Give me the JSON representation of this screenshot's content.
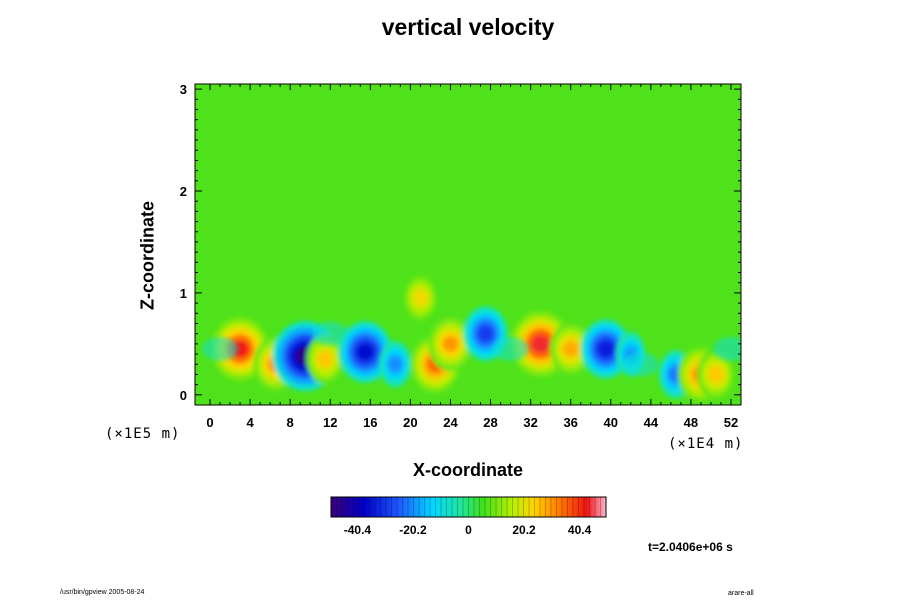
{
  "chart_data": {
    "type": "heatmap",
    "title": "vertical velocity",
    "xlabel": "X-coordinate",
    "ylabel": "Z-coordinate",
    "x_unit": "(×1E4 m)",
    "z_unit": "(×1E5 m)",
    "xlim": [
      -1.5,
      53
    ],
    "ylim": [
      -0.1,
      3.05
    ],
    "x_ticks": [
      0,
      4,
      8,
      12,
      16,
      20,
      24,
      28,
      32,
      36,
      40,
      44,
      48,
      52
    ],
    "y_ticks": [
      0,
      1,
      2,
      3
    ],
    "colorbar": {
      "range": [
        -50,
        50
      ],
      "ticks": [
        -40.4,
        -20.2,
        0,
        20.2,
        40.4
      ]
    },
    "annotation": "t=2.0406e+06 s",
    "features": [
      {
        "x": 3,
        "z": 0.45,
        "value": 42
      },
      {
        "x": 6.5,
        "z": 0.3,
        "value": 30
      },
      {
        "x": 9.5,
        "z": 0.38,
        "value": -48
      },
      {
        "x": 11.5,
        "z": 0.35,
        "value": 25
      },
      {
        "x": 15.5,
        "z": 0.42,
        "value": -38
      },
      {
        "x": 18.5,
        "z": 0.3,
        "value": -20
      },
      {
        "x": 21,
        "z": 0.95,
        "value": 22
      },
      {
        "x": 22.5,
        "z": 0.3,
        "value": 35
      },
      {
        "x": 24,
        "z": 0.5,
        "value": 30
      },
      {
        "x": 27.5,
        "z": 0.6,
        "value": -30
      },
      {
        "x": 33,
        "z": 0.5,
        "value": 44
      },
      {
        "x": 36,
        "z": 0.45,
        "value": 28
      },
      {
        "x": 39.5,
        "z": 0.45,
        "value": -35
      },
      {
        "x": 42,
        "z": 0.4,
        "value": -18
      },
      {
        "x": 46.5,
        "z": 0.2,
        "value": -22
      },
      {
        "x": 49,
        "z": 0.2,
        "value": 32
      },
      {
        "x": 50.5,
        "z": 0.2,
        "value": 25
      }
    ]
  },
  "footer": {
    "left": "/usr/bin/gpview 2005-08-24",
    "right": "arare-all"
  }
}
